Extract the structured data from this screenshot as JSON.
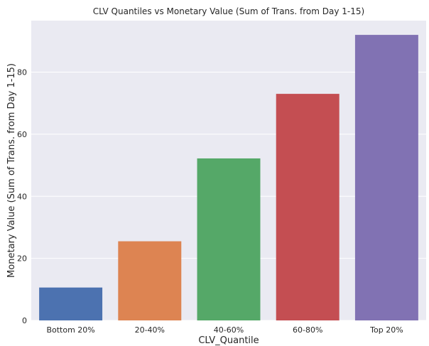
{
  "chart_data": {
    "type": "bar",
    "title": "CLV Quantiles vs Monetary Value (Sum of Trans. from Day 1-15)",
    "xlabel": "CLV_Quantile",
    "ylabel": "Monetary Value (Sum of Trans. from Day 1-15)",
    "categories": [
      "Bottom 20%",
      "20-40%",
      "40-60%",
      "60-80%",
      "Top 20%"
    ],
    "values": [
      10.6,
      25.5,
      52.2,
      73.0,
      92.0
    ],
    "colors": [
      "#4c72b0",
      "#dd8452",
      "#55a868",
      "#c44e52",
      "#8172b3"
    ],
    "ylim": [
      0,
      96.6
    ],
    "yticks": [
      0,
      20,
      40,
      60,
      80
    ],
    "grid": true,
    "background": "#eaeaf2"
  }
}
